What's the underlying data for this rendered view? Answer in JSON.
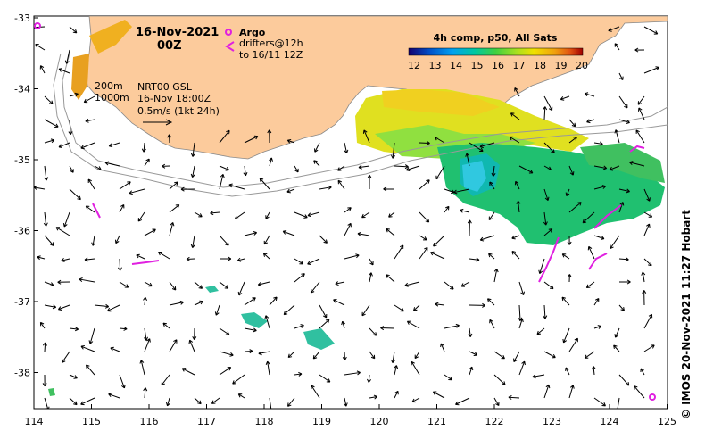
{
  "map": {
    "date": "16-Nov-2021",
    "time": "00Z",
    "argo": {
      "label": "Argo",
      "color": "#e020e0"
    },
    "drifters": {
      "line1": "drifters@12h",
      "line2": "to 16/11 12Z",
      "color": "#e020e0"
    },
    "colorbar": {
      "title": "4h comp, p50, All Sats",
      "ticks": [
        "12",
        "13",
        "14",
        "15",
        "16",
        "17",
        "18",
        "19",
        "20"
      ],
      "colors": [
        "#14006e",
        "#0050c8",
        "#00a0f0",
        "#00c8a0",
        "#40d040",
        "#a8e020",
        "#f0e000",
        "#f0a010",
        "#e05010",
        "#a00000"
      ]
    },
    "isobaths": {
      "line1": "200m",
      "line2": "1000m"
    },
    "product": {
      "line1": "NRT00 GSL",
      "line2": "16-Nov 18:00Z"
    },
    "scale": {
      "label": "0.5m/s (1kt 24h)"
    },
    "lon_ticks": [
      "114",
      "115",
      "116",
      "117",
      "118",
      "119",
      "120",
      "121",
      "122",
      "123",
      "124",
      "125"
    ],
    "lat_ticks": [
      "-33",
      "-34",
      "-35",
      "-36",
      "-37",
      "-38"
    ],
    "credit": "© IMOS 20-Nov-2021 11:27 Hobart",
    "land_color": "#fccb9c"
  }
}
